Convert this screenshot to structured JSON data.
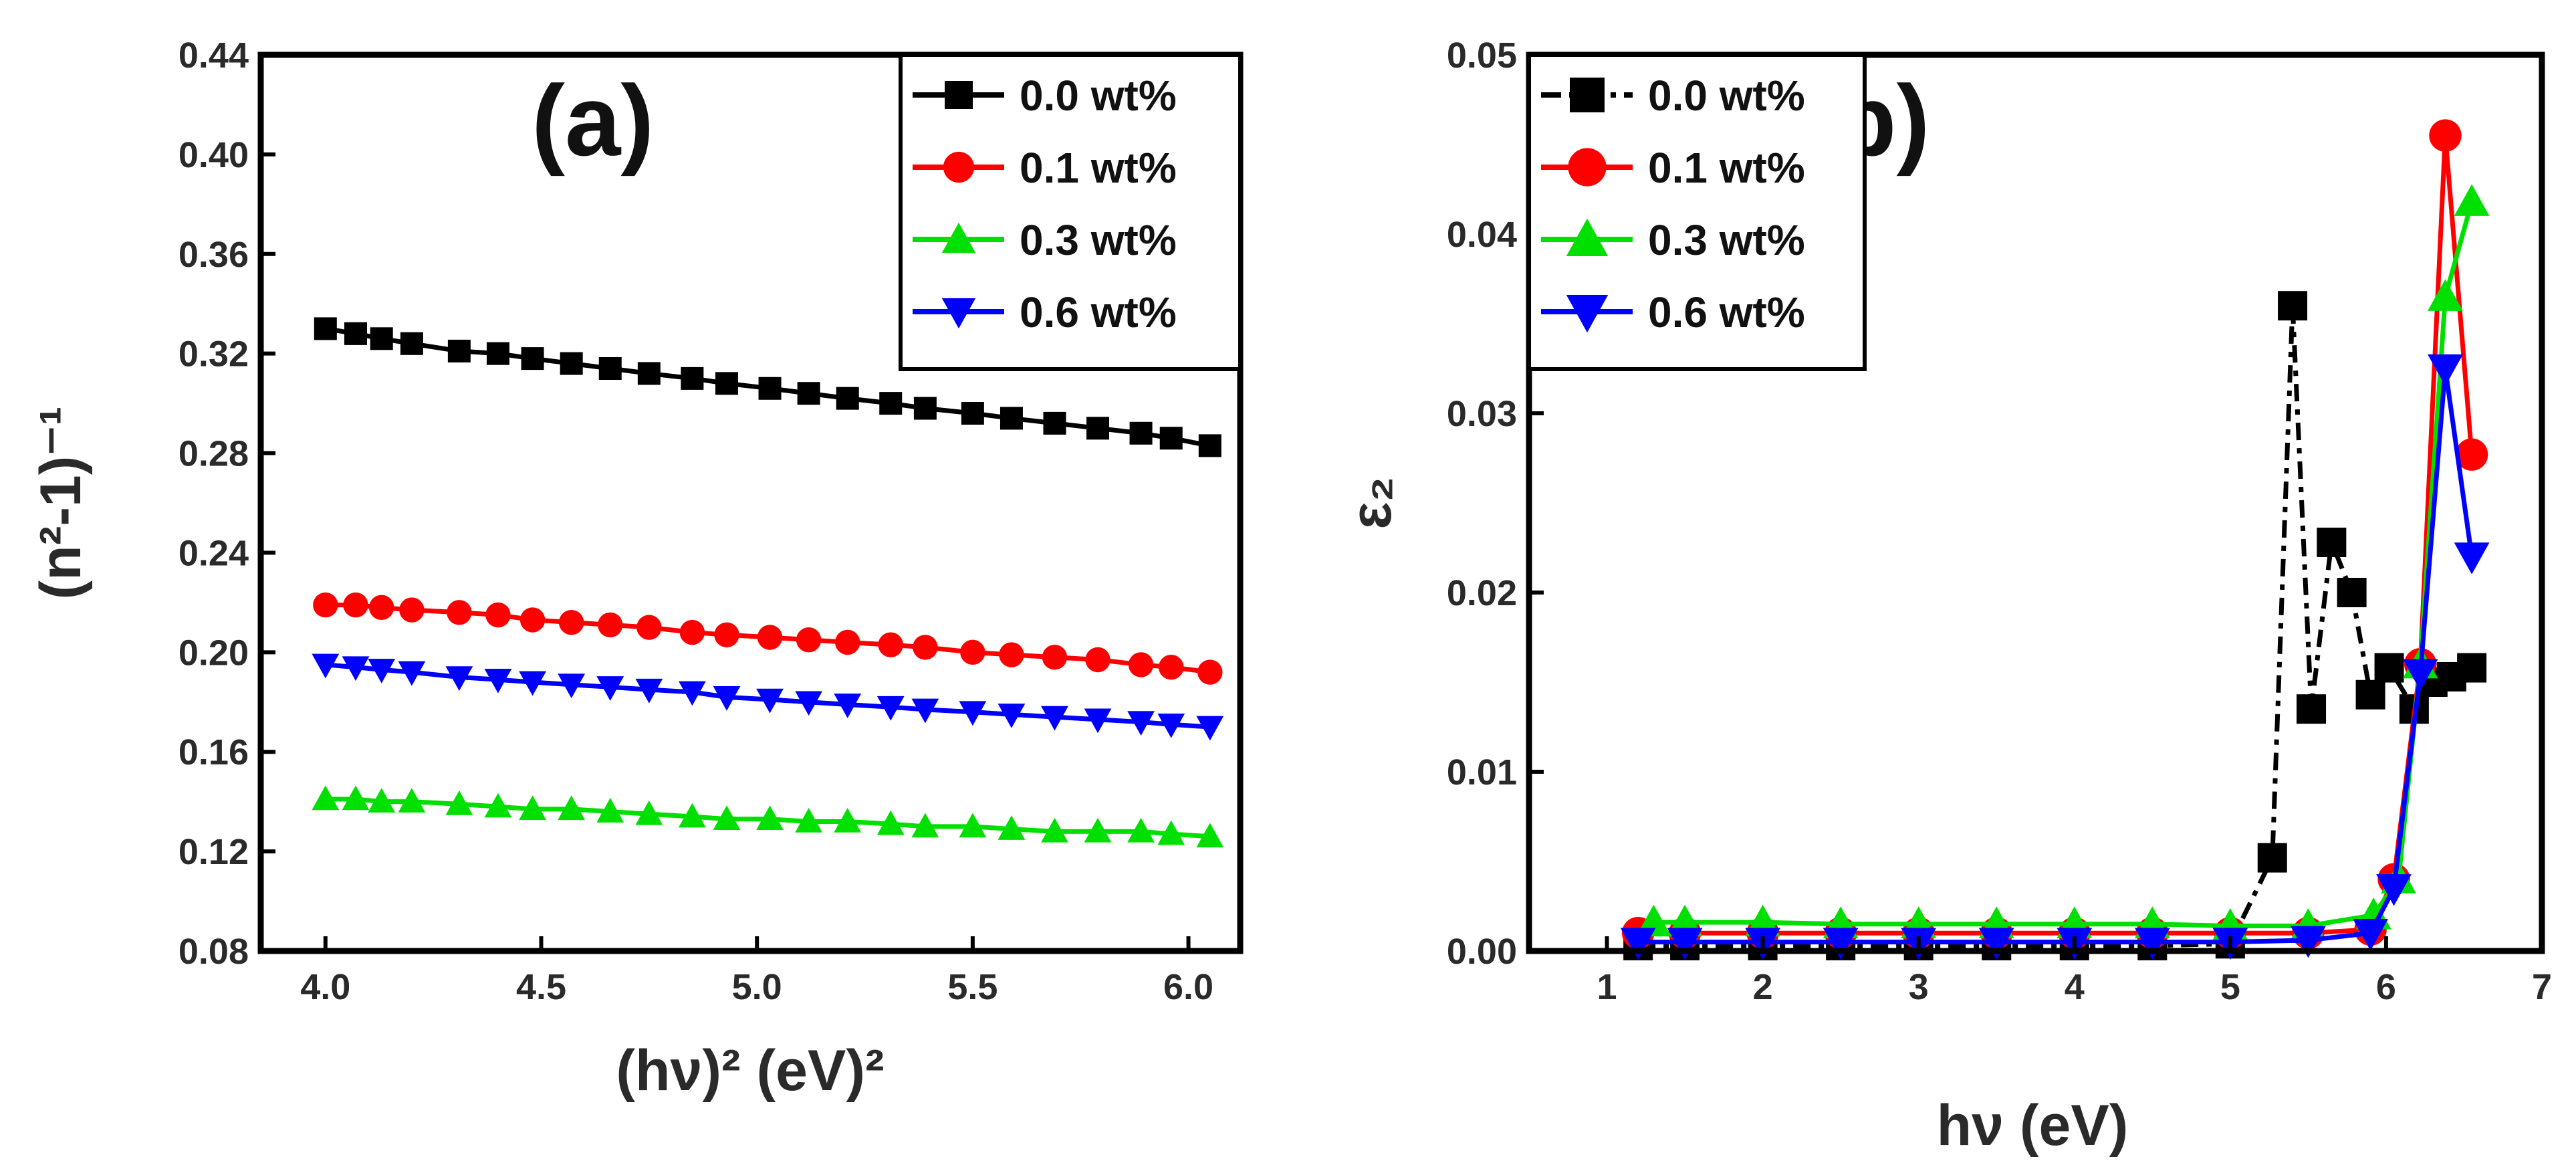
{
  "colors": {
    "0.0": "#000000",
    "0.1": "#ff0000",
    "0.3": "#00e000",
    "0.6": "#0000ff"
  },
  "chart_data": [
    {
      "type": "line",
      "panel_label": "(a)",
      "xlabel": "(hν)² (eV)²",
      "ylabel": "(n²-1)⁻¹",
      "xlim": [
        3.85,
        6.12
      ],
      "ylim": [
        0.08,
        0.44
      ],
      "xticks": [
        "4.0",
        "4.5",
        "5.0",
        "5.5",
        "6.0"
      ],
      "xtick_values": [
        4.0,
        4.5,
        5.0,
        5.5,
        6.0
      ],
      "yticks": [
        "0.08",
        "0.12",
        "0.16",
        "0.20",
        "0.24",
        "0.28",
        "0.32",
        "0.36",
        "0.40",
        "0.44"
      ],
      "ytick_values": [
        0.08,
        0.12,
        0.16,
        0.2,
        0.24,
        0.28,
        0.32,
        0.36,
        0.4,
        0.44
      ],
      "legend_position": "top-right",
      "x": [
        4.0,
        4.07,
        4.13,
        4.2,
        4.31,
        4.4,
        4.48,
        4.57,
        4.66,
        4.75,
        4.85,
        4.93,
        5.03,
        5.12,
        5.21,
        5.31,
        5.39,
        5.5,
        5.59,
        5.69,
        5.79,
        5.89,
        5.96,
        6.05
      ],
      "series": [
        {
          "name": "0.0 wt%",
          "color_key": "0.0",
          "marker": "square",
          "values": [
            0.33,
            0.328,
            0.326,
            0.324,
            0.321,
            0.32,
            0.318,
            0.316,
            0.314,
            0.312,
            0.31,
            0.308,
            0.306,
            0.304,
            0.302,
            0.3,
            0.298,
            0.296,
            0.294,
            0.292,
            0.29,
            0.288,
            0.286,
            0.283
          ]
        },
        {
          "name": "0.1 wt%",
          "color_key": "0.1",
          "marker": "circle",
          "values": [
            0.219,
            0.219,
            0.218,
            0.217,
            0.216,
            0.215,
            0.213,
            0.212,
            0.211,
            0.21,
            0.208,
            0.207,
            0.206,
            0.205,
            0.204,
            0.203,
            0.202,
            0.2,
            0.199,
            0.198,
            0.197,
            0.195,
            0.194,
            0.192
          ]
        },
        {
          "name": "0.3 wt%",
          "color_key": "0.3",
          "marker": "triangle-up",
          "values": [
            0.141,
            0.141,
            0.14,
            0.14,
            0.139,
            0.138,
            0.137,
            0.137,
            0.136,
            0.135,
            0.134,
            0.133,
            0.133,
            0.132,
            0.132,
            0.131,
            0.13,
            0.13,
            0.129,
            0.128,
            0.128,
            0.128,
            0.127,
            0.126
          ]
        },
        {
          "name": "0.6 wt%",
          "color_key": "0.6",
          "marker": "triangle-down",
          "values": [
            0.195,
            0.194,
            0.193,
            0.192,
            0.19,
            0.189,
            0.188,
            0.187,
            0.186,
            0.185,
            0.184,
            0.182,
            0.181,
            0.18,
            0.179,
            0.178,
            0.177,
            0.176,
            0.175,
            0.174,
            0.173,
            0.172,
            0.171,
            0.17
          ]
        }
      ]
    },
    {
      "type": "line",
      "panel_label": "(b)",
      "xlabel": "hν (eV)",
      "ylabel": "ε₂",
      "xlim": [
        0.5,
        7
      ],
      "ylim": [
        0,
        0.05
      ],
      "xticks": [
        "1",
        "2",
        "3",
        "4",
        "5",
        "6",
        "7"
      ],
      "xtick_values": [
        1,
        2,
        3,
        4,
        5,
        6,
        7
      ],
      "yticks": [
        "0.00",
        "0.01",
        "0.02",
        "0.03",
        "0.04",
        "0.05"
      ],
      "ytick_values": [
        0,
        0.01,
        0.02,
        0.03,
        0.04,
        0.05
      ],
      "legend_position": "top-left",
      "series": [
        {
          "name": "0.0 wt%",
          "color_key": "0.0",
          "marker": "square",
          "dashed": true,
          "x": [
            1.2,
            1.5,
            2.0,
            2.5,
            3.0,
            3.5,
            4.0,
            4.5,
            5.0,
            5.27,
            5.4,
            5.52,
            5.65,
            5.78,
            5.9,
            6.02,
            6.18,
            6.3,
            6.42,
            6.55
          ],
          "values": [
            0.0003,
            0.0003,
            0.0003,
            0.0003,
            0.0003,
            0.0003,
            0.0003,
            0.0003,
            0.0004,
            0.0052,
            0.036,
            0.0135,
            0.0228,
            0.02,
            0.0143,
            0.0158,
            0.0135,
            0.015,
            0.0153,
            0.0158
          ]
        },
        {
          "name": "0.1 wt%",
          "color_key": "0.1",
          "marker": "circle",
          "x": [
            1.2,
            1.5,
            2.0,
            2.5,
            3.0,
            3.5,
            4.0,
            4.5,
            5.0,
            5.5,
            5.9,
            6.05,
            6.22,
            6.38,
            6.55
          ],
          "values": [
            0.001,
            0.001,
            0.001,
            0.001,
            0.001,
            0.001,
            0.001,
            0.001,
            0.001,
            0.001,
            0.0012,
            0.004,
            0.016,
            0.0455,
            0.0277
          ]
        },
        {
          "name": "0.3 wt%",
          "color_key": "0.3",
          "marker": "triangle-up",
          "x": [
            1.3,
            1.5,
            2.0,
            2.5,
            3.0,
            3.5,
            4.0,
            4.5,
            5.0,
            5.5,
            5.92,
            6.08,
            6.22,
            6.38,
            6.55
          ],
          "values": [
            0.0016,
            0.0016,
            0.0016,
            0.0015,
            0.0015,
            0.0015,
            0.0015,
            0.0015,
            0.0014,
            0.0014,
            0.002,
            0.004,
            0.016,
            0.0365,
            0.0418
          ]
        },
        {
          "name": "0.6 wt%",
          "color_key": "0.6",
          "marker": "triangle-down",
          "x": [
            1.2,
            1.5,
            2.0,
            2.5,
            3.0,
            3.5,
            4.0,
            4.5,
            5.0,
            5.5,
            5.9,
            6.05,
            6.22,
            6.38,
            6.55
          ],
          "values": [
            0.0005,
            0.0005,
            0.0005,
            0.0005,
            0.0005,
            0.0005,
            0.0005,
            0.0005,
            0.0005,
            0.0006,
            0.001,
            0.0035,
            0.0155,
            0.0325,
            0.022
          ]
        }
      ]
    }
  ]
}
